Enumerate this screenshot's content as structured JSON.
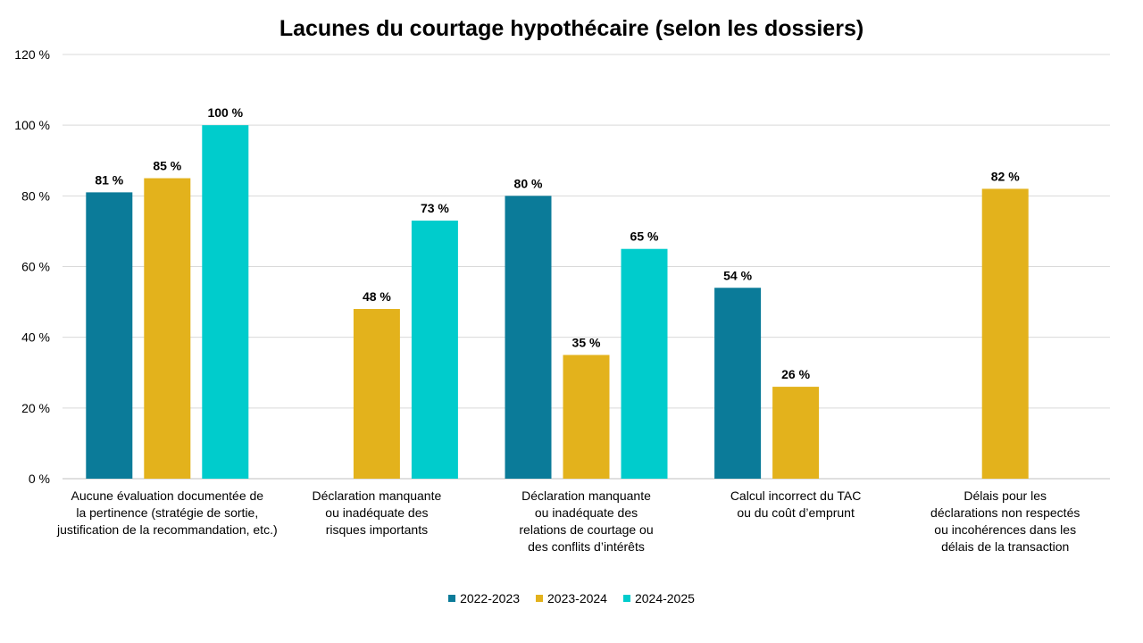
{
  "chart_data": {
    "type": "bar",
    "title": "Lacunes du courtage hypothécaire (selon les dossiers)",
    "xlabel": "",
    "ylabel": "",
    "ylim": [
      0,
      120
    ],
    "yticks": [
      0,
      20,
      40,
      60,
      80,
      100,
      120
    ],
    "ytick_labels": [
      "0 %",
      "20 %",
      "40 %",
      "60 %",
      "80 %",
      "100 %",
      "120 %"
    ],
    "grid": true,
    "legend_position": "bottom",
    "categories": [
      [
        "Aucune évaluation documentée de",
        "la pertinence (stratégie de sortie,",
        "justification de la recommandation, etc.)"
      ],
      [
        "Déclaration manquante",
        "ou inadéquate des",
        "risques importants"
      ],
      [
        "Déclaration manquante",
        "ou inadéquate des",
        "relations de courtage ou",
        "des conflits d’intérêts"
      ],
      [
        "Calcul incorrect du TAC",
        "ou du coût d’emprunt"
      ],
      [
        "Délais pour les",
        "déclarations non respectés",
        "ou incohérences dans les",
        "délais de la transaction"
      ]
    ],
    "series": [
      {
        "name": "2022-2023",
        "color": "#0b7b99",
        "values": [
          81,
          null,
          80,
          54,
          null
        ],
        "labels": [
          "81 %",
          null,
          "80 %",
          "54 %",
          null
        ]
      },
      {
        "name": "2023-2024",
        "color": "#e3b21c",
        "values": [
          85,
          48,
          35,
          26,
          82
        ],
        "labels": [
          "85 %",
          "48 %",
          "35 %",
          "26 %",
          "82 %"
        ]
      },
      {
        "name": "2024-2025",
        "color": "#00cccc",
        "values": [
          100,
          73,
          65,
          null,
          null
        ],
        "labels": [
          "100 %",
          "73 %",
          "65 %",
          null,
          null
        ]
      }
    ]
  }
}
